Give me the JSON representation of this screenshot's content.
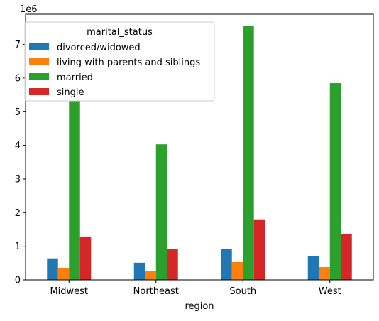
{
  "chart_data": {
    "type": "bar",
    "title": "",
    "xlabel": "region",
    "ylabel": "",
    "y_offset_label": "1e6",
    "y_scale": 1000000,
    "categories": [
      "Midwest",
      "Northeast",
      "South",
      "West"
    ],
    "ylim": [
      0,
      7900000
    ],
    "yticks": [
      0,
      1000000,
      2000000,
      3000000,
      4000000,
      5000000,
      6000000,
      7000000
    ],
    "ytick_labels": [
      "0",
      "1",
      "2",
      "3",
      "4",
      "5",
      "6",
      "7"
    ],
    "legend": {
      "title": "marital_status",
      "position": "top-left"
    },
    "grid": false,
    "series": [
      {
        "name": "divorced/widowed",
        "color": "#1f77b4",
        "values": [
          640000,
          510000,
          920000,
          710000
        ]
      },
      {
        "name": "living with parents and siblings",
        "color": "#ff7f0e",
        "values": [
          360000,
          270000,
          530000,
          380000
        ]
      },
      {
        "name": "married",
        "color": "#2ca02c",
        "values": [
          5330000,
          4030000,
          7560000,
          5850000
        ]
      },
      {
        "name": "single",
        "color": "#d62728",
        "values": [
          1270000,
          920000,
          1780000,
          1370000
        ]
      }
    ]
  }
}
